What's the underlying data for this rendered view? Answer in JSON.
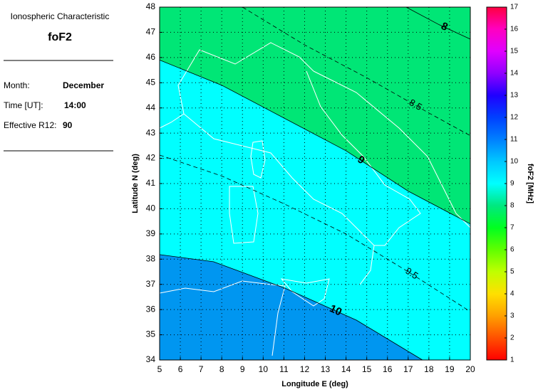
{
  "panel": {
    "heading": "Ionospheric Characteristic",
    "parameter": "foF2",
    "fields": [
      {
        "label": "Month:",
        "value": "December"
      },
      {
        "label": "Time [UT]:",
        "value": "14:00"
      },
      {
        "label": "Effective R12:",
        "value": "90"
      }
    ]
  },
  "chart_data": {
    "type": "contour",
    "xlabel": "Longitude E (deg)",
    "ylabel": "Latitude N (deg)",
    "xlim": [
      5,
      20
    ],
    "ylim": [
      34,
      48
    ],
    "xticks": [
      5,
      6,
      7,
      8,
      9,
      10,
      11,
      12,
      13,
      14,
      15,
      16,
      17,
      18,
      19,
      20
    ],
    "yticks": [
      34,
      35,
      36,
      37,
      38,
      39,
      40,
      41,
      42,
      43,
      44,
      45,
      46,
      47,
      48
    ],
    "grid": true,
    "background": "#00ffff",
    "contours": [
      {
        "level": 8,
        "style": "solid",
        "lon": [
          16.9,
          18.5,
          20
        ],
        "lat": [
          48,
          47.3,
          46.73
        ]
      },
      {
        "level": 8.5,
        "style": "dashed",
        "lon": [
          9,
          12,
          15,
          18,
          20
        ],
        "lat": [
          48,
          46.5,
          45.2,
          43.8,
          42.9
        ]
      },
      {
        "level": 9,
        "style": "solid",
        "fill": "#00e676",
        "fill_side": "above",
        "lon": [
          5,
          8,
          11,
          14,
          17,
          20
        ],
        "lat": [
          45.9,
          44.9,
          43.6,
          42.3,
          40.7,
          39.4
        ]
      },
      {
        "level": 9.5,
        "style": "dashed",
        "lon": [
          5,
          8,
          11,
          14,
          17,
          20
        ],
        "lat": [
          42.13,
          41.3,
          40.2,
          39.0,
          37.5,
          35.92
        ]
      },
      {
        "level": 10,
        "style": "solid",
        "fill": "#0096f0",
        "fill_side": "below",
        "lon": [
          5,
          7.6,
          11.05,
          14.5,
          17.69
        ],
        "lat": [
          38.18,
          37.9,
          36.85,
          35.58,
          34
        ]
      }
    ],
    "colorbar": {
      "label": "foF2 [MHz]",
      "lim": [
        1,
        17
      ],
      "ticks": [
        1,
        2,
        3,
        4,
        5,
        6,
        7,
        8,
        9,
        10,
        11,
        12,
        13,
        14,
        15,
        16,
        17
      ],
      "colors": [
        "#ff0000",
        "#ff5000",
        "#ffa000",
        "#ffe000",
        "#c0ff00",
        "#60ff00",
        "#00ff20",
        "#00e880",
        "#00ffff",
        "#00c8ff",
        "#0080ff",
        "#0040ff",
        "#2000ff",
        "#9000ff",
        "#e000ff",
        "#ff00c0",
        "#ff0040"
      ]
    }
  }
}
